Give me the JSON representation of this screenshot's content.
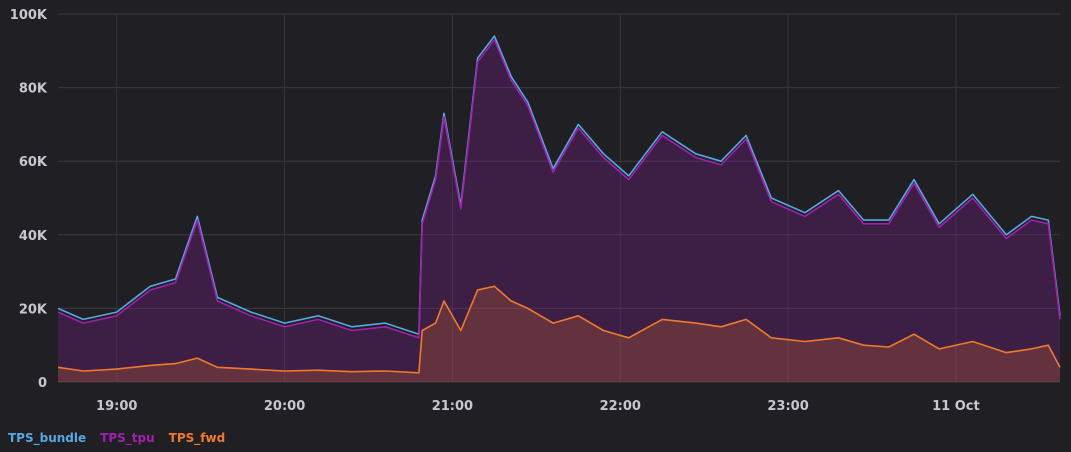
{
  "chart_data": {
    "type": "area",
    "yTicks": [
      0,
      20000,
      40000,
      60000,
      80000,
      100000
    ],
    "yTickLabels": [
      "0",
      "20K",
      "40K",
      "60K",
      "80K",
      "100K"
    ],
    "ylim": [
      0,
      100000
    ],
    "xTickLabels": [
      "19:00",
      "20:00",
      "21:00",
      "22:00",
      "23:00",
      "11 Oct"
    ],
    "xTickHours": [
      19,
      20,
      21,
      22,
      23,
      24
    ],
    "xlim": [
      18.65,
      24.62
    ],
    "grid": true,
    "legend_position": "bottom-left",
    "x": [
      18.65,
      18.8,
      19.0,
      19.2,
      19.35,
      19.48,
      19.6,
      19.8,
      20.0,
      20.2,
      20.4,
      20.6,
      20.8,
      20.82,
      20.9,
      20.95,
      21.05,
      21.15,
      21.25,
      21.35,
      21.45,
      21.6,
      21.75,
      21.9,
      22.05,
      22.25,
      22.45,
      22.6,
      22.75,
      22.9,
      23.1,
      23.3,
      23.45,
      23.6,
      23.75,
      23.9,
      24.1,
      24.3,
      24.45,
      24.55,
      24.62
    ],
    "series": [
      {
        "name": "TPS_bundle",
        "color": "#56a9e0",
        "values": [
          20000,
          17000,
          19000,
          26000,
          28000,
          45000,
          23000,
          19000,
          16000,
          18000,
          15000,
          16000,
          13000,
          44000,
          56000,
          73000,
          48000,
          88000,
          94000,
          83000,
          76000,
          58000,
          70000,
          62000,
          56000,
          68000,
          62000,
          60000,
          67000,
          50000,
          46000,
          52000,
          44000,
          44000,
          55000,
          43000,
          51000,
          40000,
          45000,
          44000,
          18000
        ]
      },
      {
        "name": "TPS_tpu",
        "color": "#a020b0",
        "values": [
          19000,
          16000,
          18000,
          25000,
          27000,
          44000,
          22000,
          18000,
          15000,
          17000,
          14000,
          15000,
          12000,
          43000,
          55000,
          72000,
          47000,
          87000,
          93000,
          82000,
          75000,
          57000,
          69000,
          61000,
          55000,
          67000,
          61000,
          59000,
          66000,
          49000,
          45000,
          51000,
          43000,
          43000,
          54000,
          42000,
          50000,
          39000,
          44000,
          43000,
          17000
        ]
      },
      {
        "name": "TPS_fwd",
        "color": "#f07a2c",
        "values": [
          4000,
          3000,
          3500,
          4500,
          5000,
          6500,
          4000,
          3500,
          3000,
          3200,
          2800,
          3000,
          2500,
          14000,
          16000,
          22000,
          14000,
          25000,
          26000,
          22000,
          20000,
          16000,
          18000,
          14000,
          12000,
          17000,
          16000,
          15000,
          17000,
          12000,
          11000,
          12000,
          10000,
          9500,
          13000,
          9000,
          11000,
          8000,
          9000,
          10000,
          4000
        ]
      }
    ]
  },
  "legend": {
    "items": [
      {
        "label": "TPS_bundle",
        "color": "#56a9e0"
      },
      {
        "label": "TPS_tpu",
        "color": "#a020b0"
      },
      {
        "label": "TPS_fwd",
        "color": "#f07a2c"
      }
    ]
  }
}
